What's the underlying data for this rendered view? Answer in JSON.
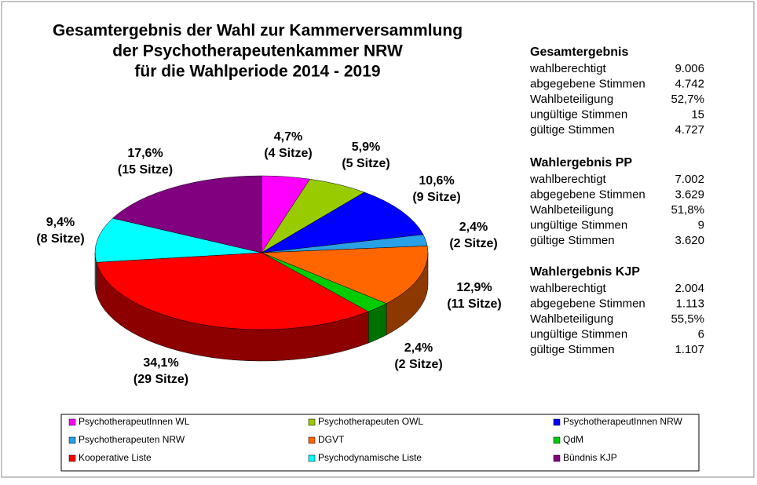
{
  "chart_data": {
    "type": "pie",
    "title": [
      "Gesamtergebnis der Wahl zur Kammerversammlung",
      "der Psychotherapeutenkammer  NRW",
      "für die Wahlperiode 2014 - 2019"
    ],
    "categories": [
      "PsychotherapeutInnen WL",
      "Psychotherapeuten OWL",
      "PsychotherapeutInnen NRW",
      "Psychotherapeuten NRW",
      "DGVT",
      "QdM",
      "Kooperative Liste",
      "Psychodynamische Liste",
      "Bündnis KJP"
    ],
    "values": [
      4.7,
      5.9,
      10.6,
      2.4,
      12.9,
      2.4,
      34.1,
      9.4,
      17.6
    ],
    "value_labels": [
      "4,7%",
      "5,9%",
      "10,6%",
      "2,4%",
      "12,9%",
      "2,4%",
      "34,1%",
      "9,4%",
      "17,6%"
    ],
    "seat_labels": [
      "(4 Sitze)",
      "(5 Sitze)",
      "(9 Sitze)",
      "(2 Sitze)",
      "(11 Sitze)",
      "(2 Sitze)",
      "(29 Sitze)",
      "(8 Sitze)",
      "(15 Sitze)"
    ],
    "colors": [
      "#ff00ff",
      "#99cc00",
      "#0000ff",
      "#2aa0e6",
      "#ff6600",
      "#00cc00",
      "#ff0000",
      "#00ffff",
      "#800080"
    ]
  },
  "stats": [
    {
      "title": "Gesamtergebnis",
      "rows": [
        [
          "wahlberechtigt",
          "9.006"
        ],
        [
          "abgegebene Stimmen",
          "4.742"
        ],
        [
          "Wahlbeteiligung",
          "52,7%"
        ],
        [
          "ungültige Stimmen",
          "15"
        ],
        [
          "gültige Stimmen",
          "4.727"
        ]
      ]
    },
    {
      "title": "Wahlergebnis PP",
      "rows": [
        [
          "wahlberechtigt",
          "7.002"
        ],
        [
          "abgegebene Stimmen",
          "3.629"
        ],
        [
          "Wahlbeteiligung",
          "51,8%"
        ],
        [
          "ungültige Stimmen",
          "9"
        ],
        [
          "gültige Stimmen",
          "3.620"
        ]
      ]
    },
    {
      "title": "Wahlergebnis KJP",
      "rows": [
        [
          "wahlberechtigt",
          "2.004"
        ],
        [
          "abgegebene Stimmen",
          "1.113"
        ],
        [
          "Wahlbeteiligung",
          "55,5%"
        ],
        [
          "ungültige Stimmen",
          "6"
        ],
        [
          "gültige Stimmen",
          "1.107"
        ]
      ]
    }
  ]
}
